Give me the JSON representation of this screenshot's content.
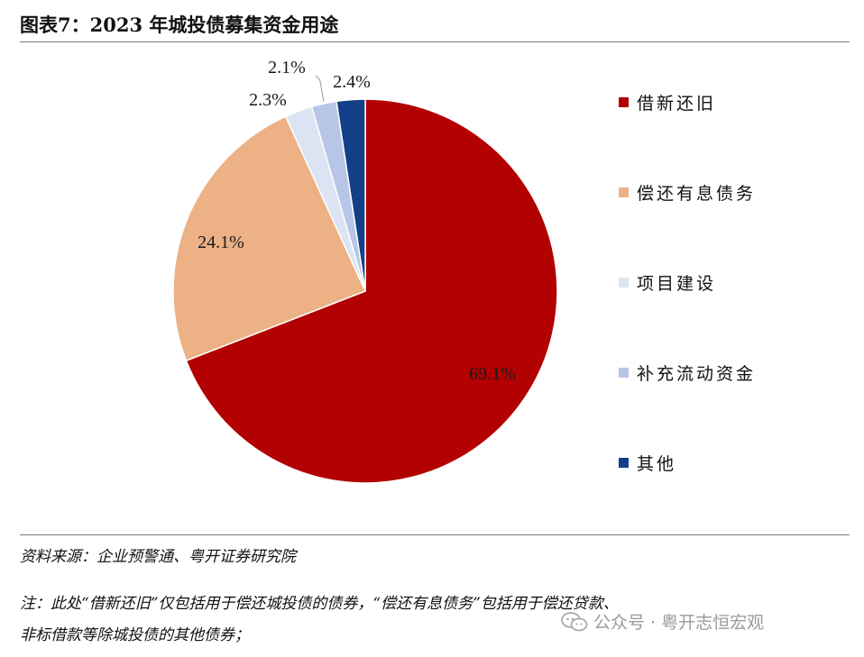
{
  "title": "图表7：2023 年城投债募集资金用途",
  "chart_data": {
    "type": "pie",
    "title": "图表7：2023 年城投债募集资金用途",
    "categories": [
      "借新还旧",
      "偿还有息债务",
      "项目建设",
      "补充流动资金",
      "其他"
    ],
    "values": [
      69.1,
      24.1,
      2.3,
      2.1,
      2.4
    ],
    "labels": [
      "69.1%",
      "24.1%",
      "2.3%",
      "2.1%",
      "2.4%"
    ],
    "colors": [
      "#b30000",
      "#ecb184",
      "#dce3f2",
      "#b7c6e7",
      "#123f87"
    ],
    "legend_position": "right"
  },
  "source": "资料来源：企业预警通、粤开证券研究院",
  "note": {
    "line1": "注：此处“借新还旧”仅包括用于偿还城投债的债券，“偿还有息债务”包括用于偿还贷款、",
    "line2": "非标借款等除城投债的其他债券；"
  },
  "watermark": "公众号 · 粤开志恒宏观",
  "icons": {
    "watermark_icon": "wechat-icon"
  }
}
